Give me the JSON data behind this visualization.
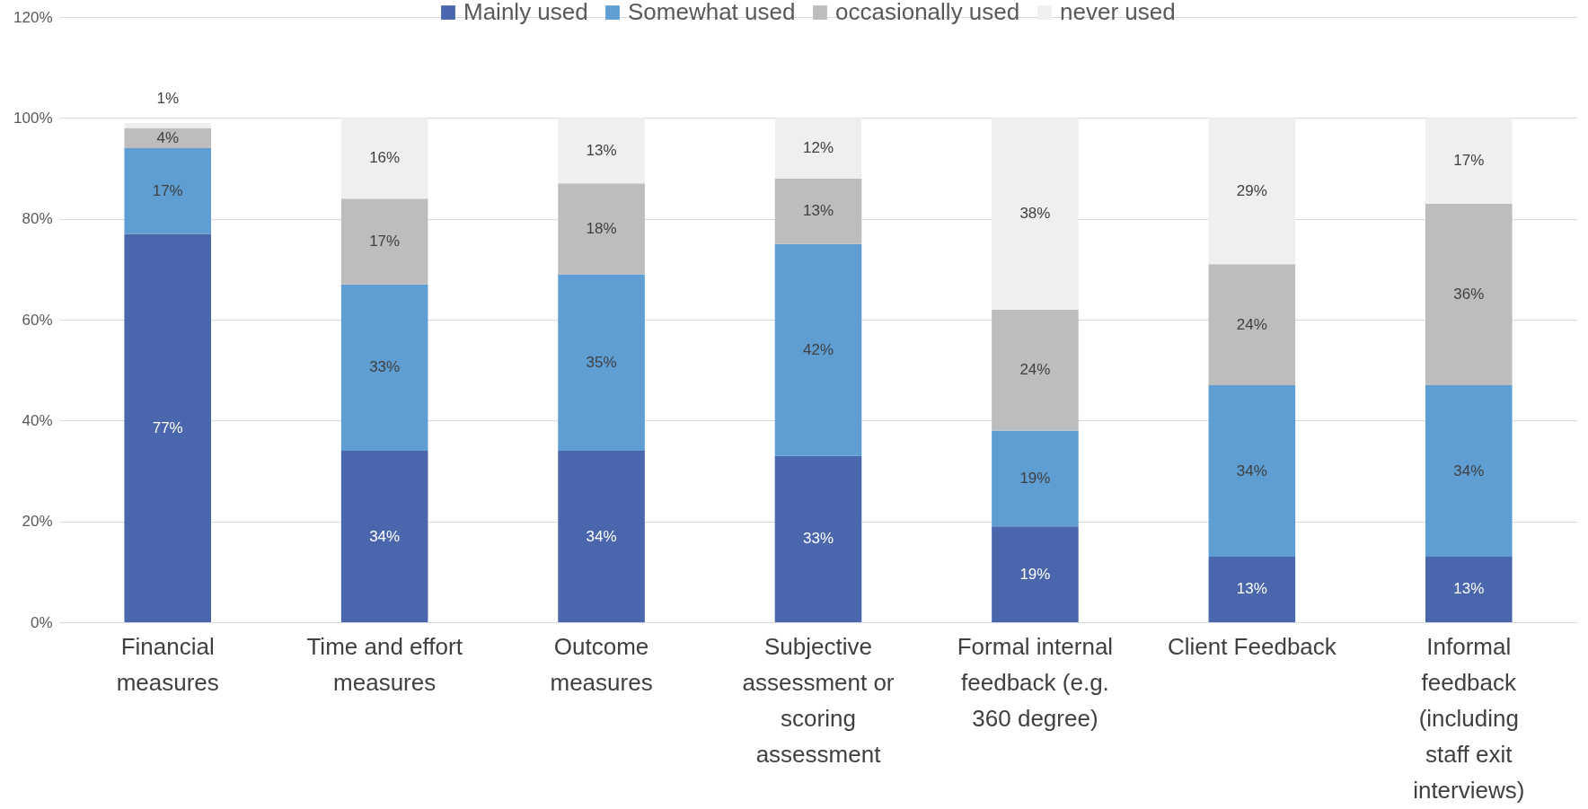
{
  "chart_data": {
    "type": "bar",
    "stacked": true,
    "categories": [
      "Financial measures",
      "Time and effort measures",
      "Outcome measures",
      "Subjective assessment or scoring assessment",
      "Formal internal feedback (e.g. 360 degree)",
      "Client Feedback",
      "Informal feedback (including staff exit interviews)"
    ],
    "series": [
      {
        "name": "Mainly used",
        "color": "#4a66ac",
        "values": [
          77,
          34,
          34,
          33,
          19,
          13,
          13
        ],
        "value_labels": [
          "77%",
          "34%",
          "34%",
          "33%",
          "19%",
          "13%",
          "13%"
        ]
      },
      {
        "name": "Somewhat used",
        "color": "#5f9ed3",
        "values": [
          17,
          33,
          35,
          42,
          19,
          34,
          34
        ],
        "value_labels": [
          "17%",
          "33%",
          "35%",
          "42%",
          "19%",
          "34%",
          "34%"
        ]
      },
      {
        "name": "occasionally used",
        "color": "#bdbdbd",
        "values": [
          4,
          17,
          18,
          13,
          24,
          24,
          36
        ],
        "value_labels": [
          "4%",
          "17%",
          "18%",
          "13%",
          "24%",
          "24%",
          "36%"
        ]
      },
      {
        "name": "never used",
        "color": "#efefef",
        "values": [
          1,
          16,
          13,
          12,
          38,
          29,
          17
        ],
        "value_labels": [
          "1%",
          "16%",
          "13%",
          "12%",
          "38%",
          "29%",
          "17%"
        ]
      }
    ],
    "ylim": [
      0,
      120
    ],
    "yticks": [
      {
        "value": 0,
        "label": "0%"
      },
      {
        "value": 20,
        "label": "20%"
      },
      {
        "value": 40,
        "label": "40%"
      },
      {
        "value": 60,
        "label": "60%"
      },
      {
        "value": 80,
        "label": "80%"
      },
      {
        "value": 100,
        "label": "100%"
      },
      {
        "value": 120,
        "label": "120%"
      }
    ],
    "grid": "y",
    "legend": "top"
  }
}
